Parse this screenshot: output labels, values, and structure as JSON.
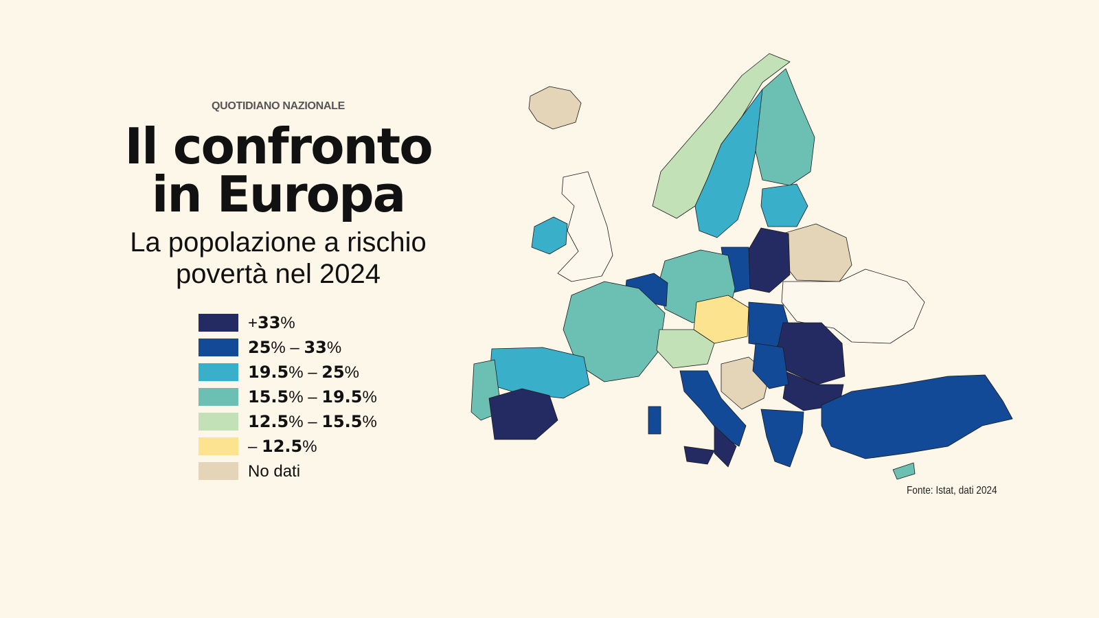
{
  "header": {
    "kicker": "QUOTIDIANO NAZIONALE",
    "title": "Il confronto in Europa",
    "subtitle": "La popolazione a rischio povertà nel 2024"
  },
  "legend": [
    {
      "color": "#232b62",
      "parts": [
        {
          "t": "+",
          "b": false
        },
        {
          "t": "33",
          "b": true
        },
        {
          "t": "%",
          "b": false
        }
      ]
    },
    {
      "color": "#124a98",
      "parts": [
        {
          "t": "25",
          "b": true
        },
        {
          "t": "% – ",
          "b": false
        },
        {
          "t": "33",
          "b": true
        },
        {
          "t": "%",
          "b": false
        }
      ]
    },
    {
      "color": "#3aafc9",
      "parts": [
        {
          "t": "19.5",
          "b": true
        },
        {
          "t": "% – ",
          "b": false
        },
        {
          "t": "25",
          "b": true
        },
        {
          "t": "%",
          "b": false
        }
      ]
    },
    {
      "color": "#6cc0b3",
      "parts": [
        {
          "t": "15.5",
          "b": true
        },
        {
          "t": "% – ",
          "b": false
        },
        {
          "t": "19.5",
          "b": true
        },
        {
          "t": "%",
          "b": false
        }
      ]
    },
    {
      "color": "#c3e1b6",
      "parts": [
        {
          "t": "12.5",
          "b": true
        },
        {
          "t": "% – ",
          "b": false
        },
        {
          "t": "15.5",
          "b": true
        },
        {
          "t": "%",
          "b": false
        }
      ]
    },
    {
      "color": "#fbe390",
      "parts": [
        {
          "t": " – ",
          "b": false
        },
        {
          "t": "12.5",
          "b": true
        },
        {
          "t": "%",
          "b": false
        }
      ]
    },
    {
      "color": "#e5d5b8",
      "parts": [
        {
          "t": "No dati",
          "b": false
        }
      ]
    }
  ],
  "no_region_fill": "#fdf8ee",
  "source": "Fonte: Istat, dati 2024"
}
